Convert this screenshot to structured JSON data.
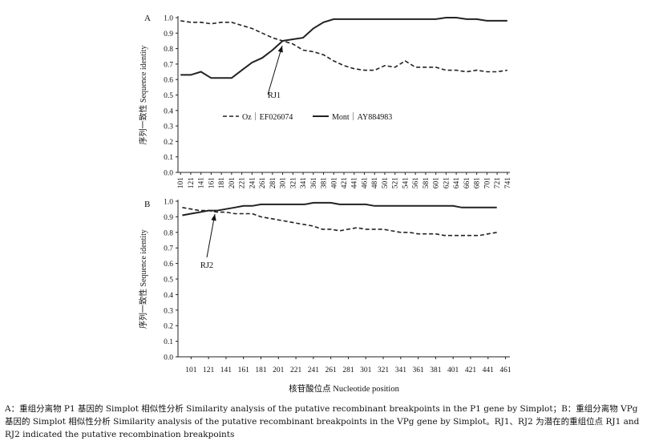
{
  "chart_data": [
    {
      "id": "A",
      "type": "line",
      "panel_label": "A",
      "ylabel": "序列一致性 Sequence identity",
      "ylim": [
        0,
        1.0
      ],
      "yticks": [
        "0.0",
        "0.1",
        "0.2",
        "0.3",
        "0.4",
        "0.5",
        "0.6",
        "0.7",
        "0.8",
        "0.9",
        "1.0"
      ],
      "x": [
        101,
        121,
        141,
        161,
        181,
        201,
        221,
        241,
        261,
        281,
        301,
        321,
        341,
        361,
        381,
        401,
        421,
        441,
        461,
        481,
        501,
        521,
        541,
        561,
        581,
        601,
        621,
        641,
        661,
        681,
        701,
        721,
        741
      ],
      "xticks": [
        "101",
        "121",
        "141",
        "161",
        "181",
        "201",
        "221",
        "241",
        "261",
        "281",
        "301",
        "321",
        "341",
        "361",
        "381",
        "401",
        "421",
        "441",
        "461",
        "481",
        "501",
        "521",
        "541",
        "561",
        "581",
        "601",
        "621",
        "641",
        "661",
        "681",
        "701",
        "721",
        "741"
      ],
      "legend_position": "center-right",
      "series": [
        {
          "name": "Oz｜EF026074",
          "style": "dashed",
          "values": [
            0.98,
            0.97,
            0.97,
            0.96,
            0.97,
            0.97,
            0.95,
            0.93,
            0.9,
            0.87,
            0.85,
            0.83,
            0.79,
            0.78,
            0.76,
            0.72,
            0.69,
            0.67,
            0.66,
            0.66,
            0.69,
            0.68,
            0.72,
            0.68,
            0.68,
            0.68,
            0.66,
            0.66,
            0.65,
            0.66,
            0.65,
            0.65,
            0.66
          ]
        },
        {
          "name": "Mont｜AY884983",
          "style": "solid",
          "values": [
            0.63,
            0.63,
            0.65,
            0.61,
            0.61,
            0.61,
            0.66,
            0.71,
            0.74,
            0.79,
            0.85,
            0.86,
            0.87,
            0.93,
            0.97,
            0.99,
            0.99,
            0.99,
            0.99,
            0.99,
            0.99,
            0.99,
            0.99,
            0.99,
            0.99,
            0.99,
            1.0,
            1.0,
            0.99,
            0.99,
            0.98,
            0.98,
            0.98
          ]
        }
      ],
      "annotation": {
        "label": "RJ1",
        "x": 301,
        "y": 0.845
      }
    },
    {
      "id": "B",
      "type": "line",
      "panel_label": "B",
      "ylabel": "序列一致性 Sequence identity",
      "xlabel": "核苷酸位点 Nucleotide position",
      "ylim": [
        0,
        1.0
      ],
      "yticks": [
        "0.0",
        "0.1",
        "0.2",
        "0.3",
        "0.4",
        "0.5",
        "0.6",
        "0.7",
        "0.8",
        "0.9",
        "1.0"
      ],
      "x": [
        91,
        101,
        111,
        121,
        131,
        141,
        151,
        161,
        171,
        181,
        191,
        201,
        211,
        221,
        231,
        241,
        251,
        261,
        271,
        281,
        291,
        301,
        311,
        321,
        331,
        341,
        351,
        361,
        371,
        381,
        391,
        401,
        411,
        421,
        431,
        441,
        451
      ],
      "xticks": [
        "101",
        "121",
        "141",
        "161",
        "181",
        "201",
        "221",
        "241",
        "261",
        "281",
        "301",
        "321",
        "341",
        "361",
        "381",
        "401",
        "421",
        "441",
        "461"
      ],
      "series": [
        {
          "name": "Oz｜EF026074",
          "style": "dashed",
          "values": [
            0.96,
            0.95,
            0.94,
            0.94,
            0.93,
            0.93,
            0.92,
            0.92,
            0.92,
            0.9,
            0.89,
            0.88,
            0.87,
            0.86,
            0.85,
            0.84,
            0.82,
            0.82,
            0.81,
            0.82,
            0.83,
            0.82,
            0.82,
            0.82,
            0.81,
            0.8,
            0.8,
            0.79,
            0.79,
            0.79,
            0.78,
            0.78,
            0.78,
            0.78,
            0.78,
            0.79,
            0.8
          ]
        },
        {
          "name": "Mont｜AY884983",
          "style": "solid",
          "values": [
            0.91,
            0.92,
            0.93,
            0.94,
            0.94,
            0.95,
            0.96,
            0.97,
            0.97,
            0.98,
            0.98,
            0.98,
            0.98,
            0.98,
            0.98,
            0.99,
            0.99,
            0.99,
            0.98,
            0.98,
            0.98,
            0.98,
            0.97,
            0.97,
            0.97,
            0.97,
            0.97,
            0.97,
            0.97,
            0.97,
            0.97,
            0.97,
            0.96,
            0.96,
            0.96,
            0.96,
            0.96
          ]
        }
      ],
      "annotation": {
        "label": "RJ2",
        "x": 126,
        "y": 0.935
      }
    }
  ],
  "caption": {
    "line1": "A：重组分离物 P1 基因的 Simplot 相似性分析  Similarity analysis of the putative recombinant breakpoints in the P1 gene by Simplot；B：重组分离物 VPg",
    "line2": "基因的 Simplot 相似性分析  Similarity analysis of the putative recombinant breakpoints in the VPg gene by Simplot。RJ1、RJ2 为潜在的重组位点 RJ1 and",
    "line3": "RJ2 indicated the putative recombination breakpoints"
  }
}
